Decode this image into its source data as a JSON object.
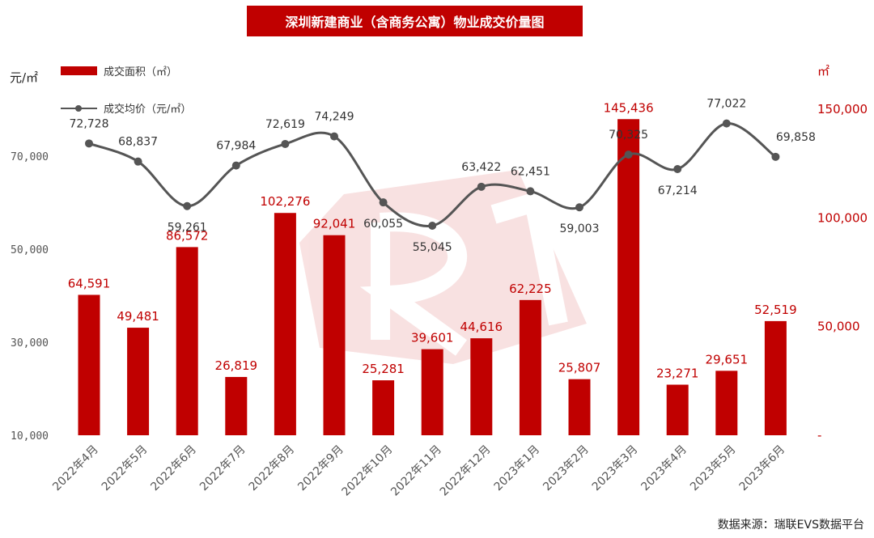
{
  "chart_data": {
    "type": "bar+line",
    "title": "深圳新建商业（含商务公寓）物业成交价量图",
    "source": "数据来源：瑞联EVS数据平台",
    "categories": [
      "2022年4月",
      "2022年5月",
      "2022年6月",
      "2022年7月",
      "2022年8月",
      "2022年9月",
      "2022年10月",
      "2022年11月",
      "2022年12月",
      "2023年1月",
      "2023年2月",
      "2023年3月",
      "2023年4月",
      "2023年5月",
      "2023年6月"
    ],
    "series": [
      {
        "name": "成交面积（㎡）",
        "type": "bar",
        "axis": "right",
        "color": "#c00000",
        "values": [
          64591,
          49481,
          86572,
          26819,
          102276,
          92041,
          25281,
          39601,
          44616,
          62225,
          25807,
          145436,
          23271,
          29651,
          52519
        ],
        "labels": [
          "64,591",
          "49,481",
          "86,572",
          "26,819",
          "102,276",
          "92,041",
          "25,281",
          "39,601",
          "44,616",
          "62,225",
          "25,807",
          "145,436",
          "23,271",
          "29,651",
          "52,519"
        ]
      },
      {
        "name": "成交均价（元/㎡）",
        "type": "line",
        "axis": "left",
        "color": "#555555",
        "values": [
          72728,
          68837,
          59261,
          67984,
          72619,
          74249,
          60055,
          55045,
          63422,
          62451,
          59003,
          70325,
          67214,
          77022,
          69858
        ],
        "labels": [
          "72,728",
          "68,837",
          "59,261",
          "67,984",
          "72,619",
          "74,249",
          "60,055",
          "55,045",
          "63,422",
          "62,451",
          "59,003",
          "70,325",
          "67,214",
          "77,022",
          "69,858"
        ]
      }
    ],
    "y_left": {
      "unit": "元/㎡",
      "ticks": [
        10000,
        30000,
        50000,
        70000
      ],
      "tick_labels": [
        "10,000",
        "30,000",
        "50,000",
        "70,000"
      ],
      "range": [
        10000,
        80000
      ]
    },
    "y_right": {
      "unit": "㎡",
      "ticks": [
        0,
        50000,
        100000,
        150000
      ],
      "tick_labels": [
        "-",
        "50,000",
        "100,000",
        "150,000"
      ],
      "range": [
        0,
        150000
      ]
    },
    "grid": false,
    "legend_position": "top-left"
  }
}
